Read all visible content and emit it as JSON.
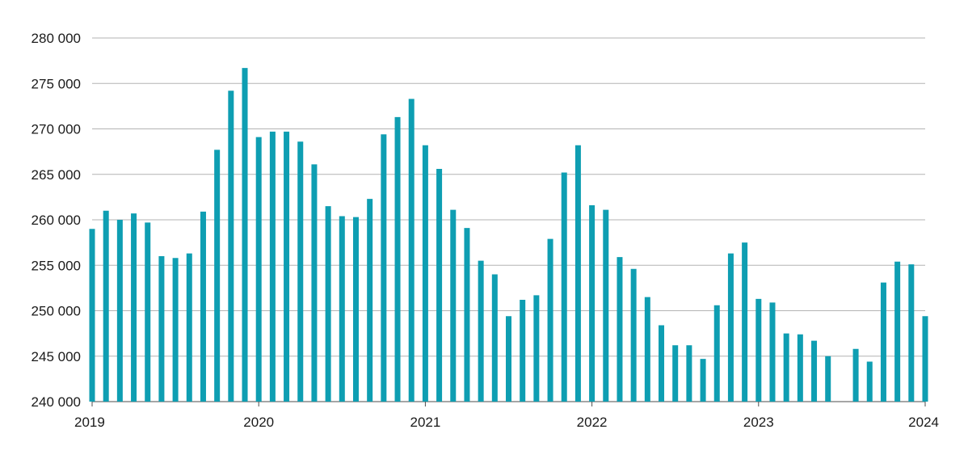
{
  "chart_data": {
    "type": "bar",
    "title": "",
    "xlabel": "",
    "ylabel": "",
    "ylim": [
      240000,
      280000
    ],
    "yticks": [
      240000,
      245000,
      250000,
      255000,
      260000,
      265000,
      270000,
      275000,
      280000
    ],
    "ytick_labels": [
      "240 000",
      "245 000",
      "250 000",
      "255 000",
      "260 000",
      "265 000",
      "270 000",
      "275 000",
      "280 000"
    ],
    "xtick_labels": [
      "2019",
      "2020",
      "2021",
      "2022",
      "2023",
      "2024"
    ],
    "grid": true,
    "legend": "none",
    "bar_color": "#0e9eb2",
    "values": [
      259000,
      261000,
      260000,
      260700,
      259700,
      256000,
      255800,
      256300,
      260900,
      267700,
      274200,
      276700,
      269100,
      269700,
      269700,
      268600,
      266100,
      261500,
      260400,
      260300,
      262300,
      269400,
      271300,
      273300,
      268200,
      265600,
      261100,
      259100,
      255500,
      254000,
      249400,
      251200,
      251700,
      257900,
      265200,
      268200,
      261600,
      261100,
      255900,
      254600,
      251500,
      248400,
      246200,
      246200,
      244700,
      250600,
      256300,
      257500,
      251300,
      250900,
      247500,
      247400,
      246700,
      245000,
      null,
      245800,
      244400,
      253100,
      255400,
      255100,
      249400
    ]
  }
}
